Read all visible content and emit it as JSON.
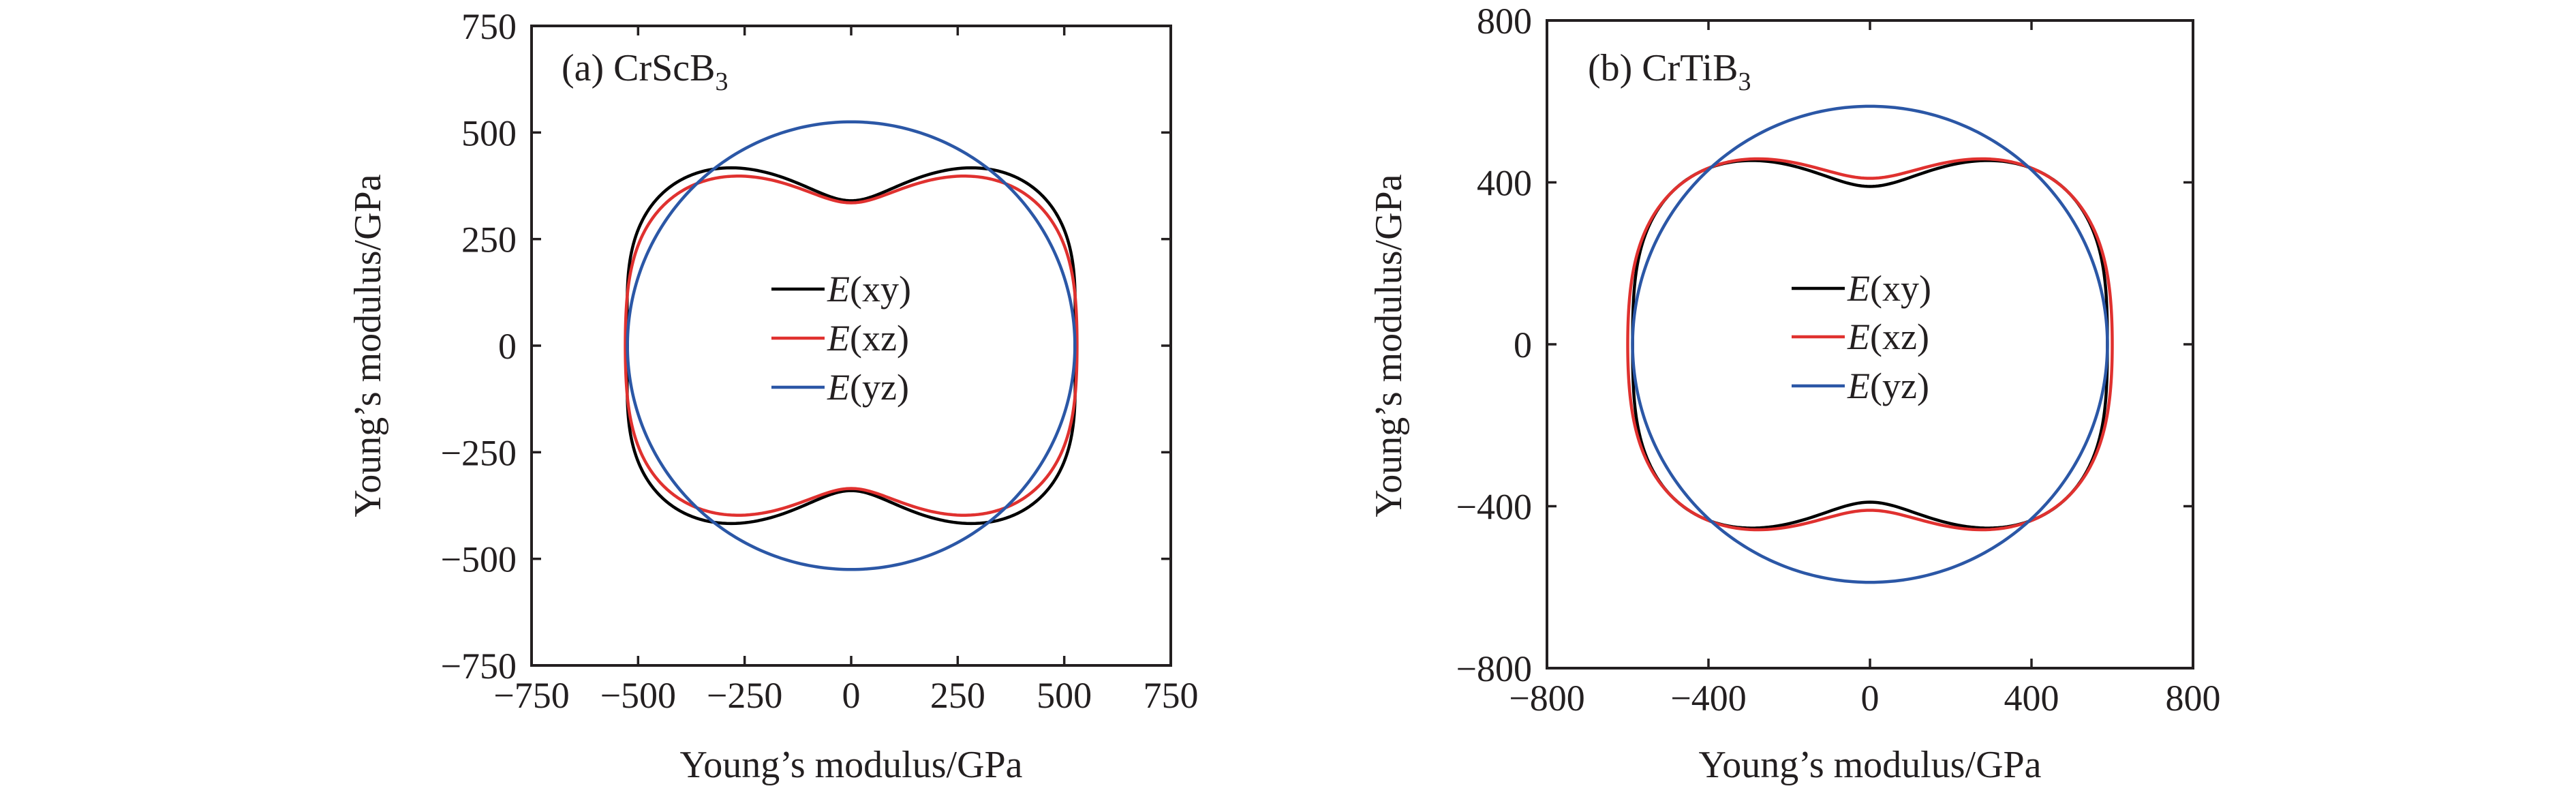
{
  "chart_data": [
    {
      "type": "line",
      "subtype": "polar-surface-projection",
      "title": "(a) CrScB",
      "title_subscript": "3",
      "xlabel": "Young’s modulus/GPa",
      "ylabel": "Young’s modulus/GPa",
      "xlim": [
        -750,
        750
      ],
      "ylim": [
        -750,
        750
      ],
      "xticks": [
        -750,
        -500,
        -250,
        0,
        250,
        500,
        750
      ],
      "xtick_labels": [
        "−750",
        "−500",
        "−250",
        "0",
        "250",
        "500",
        "750"
      ],
      "yticks": [
        750,
        500,
        250,
        0,
        -250,
        -500,
        -750
      ],
      "ytick_labels": [
        "750",
        "500",
        "250",
        "0",
        "−250",
        "−500",
        "−750"
      ],
      "grid": false,
      "legend": "center",
      "series": [
        {
          "name": "E(xy)",
          "prefix": "E",
          "arg": "(xy)",
          "color": "#000000",
          "r_axis_major": 525,
          "r_axis_minor": 340,
          "r_diagonal": 555
        },
        {
          "name": "E(xz)",
          "prefix": "E",
          "arg": "(xz)",
          "color": "#e0312f",
          "r_axis_major": 530,
          "r_axis_minor": 335,
          "r_diagonal": 530
        },
        {
          "name": "E(yz)",
          "prefix": "E",
          "arg": "(yz)",
          "color": "#2b57a6",
          "radius": 525
        }
      ]
    },
    {
      "type": "line",
      "subtype": "polar-surface-projection",
      "title": "(b) CrTiB",
      "title_subscript": "3",
      "xlabel": "Young’s modulus/GPa",
      "ylabel": "Young’s modulus/GPa",
      "xlim": [
        -800,
        800
      ],
      "ylim": [
        -800,
        800
      ],
      "xticks": [
        -800,
        -400,
        0,
        400,
        800
      ],
      "xtick_labels": [
        "−800",
        "−400",
        "0",
        "400",
        "800"
      ],
      "yticks": [
        800,
        400,
        0,
        -400,
        -800
      ],
      "ytick_labels": [
        "800",
        "400",
        "0",
        "−400",
        "−800"
      ],
      "grid": false,
      "legend": "center",
      "series": [
        {
          "name": "E(xy)",
          "prefix": "E",
          "arg": "(xy)",
          "color": "#000000",
          "r_axis_major": 588,
          "r_axis_minor": 390,
          "r_diagonal": 600
        },
        {
          "name": "E(xz)",
          "prefix": "E",
          "arg": "(xz)",
          "color": "#e0312f",
          "r_axis_major": 600,
          "r_axis_minor": 410,
          "r_diagonal": 600
        },
        {
          "name": "E(yz)",
          "prefix": "E",
          "arg": "(yz)",
          "color": "#2b57a6",
          "radius": 588
        }
      ]
    }
  ]
}
